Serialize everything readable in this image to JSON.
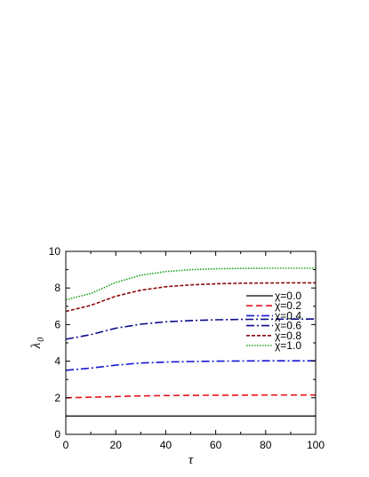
{
  "chart_data": {
    "type": "line",
    "xlabel": "τ",
    "ylabel": "λ",
    "ylabel_sub": "0",
    "xlim": [
      0,
      100
    ],
    "ylim": [
      0,
      10
    ],
    "xticks": [
      0,
      20,
      40,
      60,
      80,
      100
    ],
    "yticks": [
      0,
      2,
      4,
      6,
      8,
      10
    ],
    "legend_position": "right",
    "series": [
      {
        "name": "χ=0.0",
        "color": "#000000",
        "dash": "solid",
        "x": [
          0,
          10,
          20,
          30,
          40,
          50,
          60,
          70,
          80,
          90,
          100
        ],
        "y": [
          1.0,
          1.0,
          1.0,
          1.0,
          1.0,
          1.0,
          1.0,
          1.0,
          1.0,
          1.0,
          1.0
        ]
      },
      {
        "name": "χ=0.2",
        "color": "#e8141c",
        "dash": "dash",
        "x": [
          0,
          10,
          20,
          30,
          40,
          50,
          60,
          70,
          80,
          90,
          100
        ],
        "y": [
          2.0,
          2.03,
          2.07,
          2.1,
          2.12,
          2.13,
          2.14,
          2.14,
          2.15,
          2.15,
          2.15
        ]
      },
      {
        "name": "χ=0.4",
        "color": "#1515d8",
        "dash": "dashdot",
        "x": [
          0,
          10,
          20,
          30,
          40,
          50,
          60,
          70,
          80,
          90,
          100
        ],
        "y": [
          3.5,
          3.62,
          3.78,
          3.9,
          3.95,
          3.98,
          4.0,
          4.01,
          4.02,
          4.02,
          4.02
        ]
      },
      {
        "name": "χ=0.6",
        "color": "#0a0a8a",
        "dash": "dashdot",
        "x": [
          0,
          10,
          20,
          30,
          40,
          50,
          60,
          70,
          80,
          90,
          100
        ],
        "y": [
          5.2,
          5.45,
          5.8,
          6.02,
          6.15,
          6.22,
          6.26,
          6.28,
          6.29,
          6.3,
          6.3
        ]
      },
      {
        "name": "χ=0.8",
        "color": "#8b0a0a",
        "dash": "dash-short",
        "x": [
          0,
          10,
          20,
          30,
          40,
          50,
          60,
          70,
          80,
          90,
          100
        ],
        "y": [
          6.72,
          7.05,
          7.55,
          7.88,
          8.07,
          8.17,
          8.23,
          8.26,
          8.27,
          8.28,
          8.28
        ]
      },
      {
        "name": "χ=1.0",
        "color": "#18a018",
        "dash": "dot",
        "x": [
          0,
          10,
          20,
          30,
          40,
          50,
          60,
          70,
          80,
          90,
          100
        ],
        "y": [
          7.35,
          7.7,
          8.3,
          8.7,
          8.9,
          9.0,
          9.05,
          9.07,
          9.08,
          9.08,
          9.08
        ]
      }
    ]
  }
}
